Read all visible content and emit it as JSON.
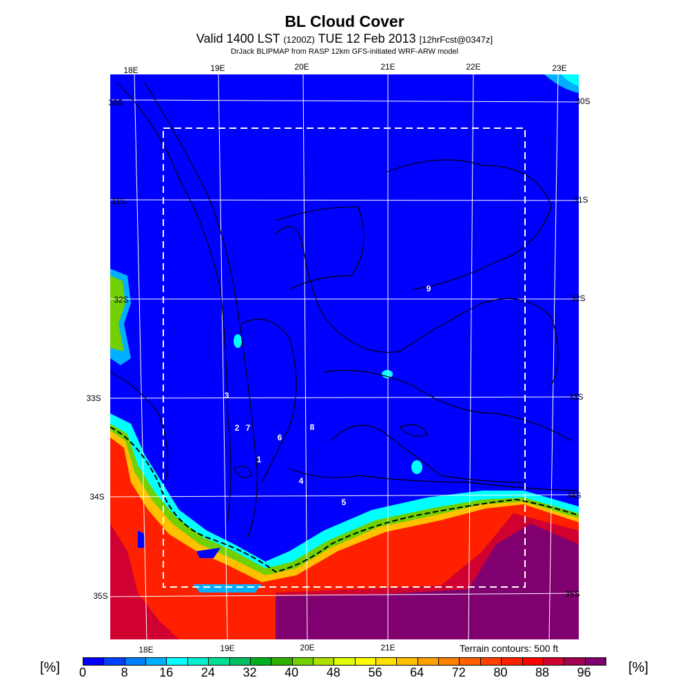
{
  "header": {
    "title": "BL Cloud Cover",
    "subtitle_main": "Valid 1400 LST",
    "subtitle_utc": "(1200Z)",
    "subtitle_date": "TUE 12 Feb 2013",
    "subtitle_fcst": "[12hrFcst@0347z]",
    "credit": "DrJack BLIPMAP from RASP 12km GFS-initiated WRF-ARW model"
  },
  "map": {
    "top_lon_labels": [
      "18E",
      "19E",
      "20E",
      "21E",
      "22E",
      "23E"
    ],
    "bottom_lon_labels": [
      "18E",
      "19E",
      "20E",
      "21E"
    ],
    "left_lat_labels": [
      "30S",
      "31S",
      "32S",
      "33S",
      "34S",
      "35S"
    ],
    "right_lat_labels": [
      "30S",
      "31S",
      "32S",
      "33S",
      "34S",
      "35S"
    ],
    "site_labels": [
      "9",
      "3",
      "2",
      "7",
      "6",
      "8",
      "1",
      "4",
      "5"
    ],
    "terrain_note": "Terrain contours: 500 ft"
  },
  "colorbar": {
    "unit_left": "[%]",
    "unit_right": "[%]",
    "tick_labels": [
      "0",
      "8",
      "16",
      "24",
      "32",
      "40",
      "48",
      "56",
      "64",
      "72",
      "80",
      "88",
      "96"
    ],
    "colors": [
      "#0000ff",
      "#0040ff",
      "#0080ff",
      "#00b0ff",
      "#00ffff",
      "#00f0d0",
      "#00e090",
      "#00c060",
      "#00b020",
      "#30b000",
      "#70d000",
      "#b0e000",
      "#e0ff00",
      "#ffff00",
      "#ffe000",
      "#ffc000",
      "#ffa000",
      "#ff8000",
      "#ff6000",
      "#ff4000",
      "#ff2000",
      "#ff0000",
      "#d00030",
      "#a00050",
      "#800070"
    ]
  }
}
